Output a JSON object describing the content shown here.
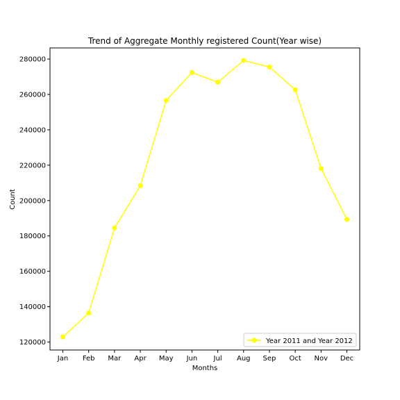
{
  "chart_data": {
    "type": "line",
    "title": "Trend of Aggregate Monthly registered Count(Year wise)",
    "xlabel": "Months",
    "ylabel": "Count",
    "categories": [
      "Jan",
      "Feb",
      "Mar",
      "Apr",
      "May",
      "Jun",
      "Jul",
      "Aug",
      "Sep",
      "Oct",
      "Nov",
      "Dec"
    ],
    "series": [
      {
        "name": "Year 2011 and Year 2012",
        "color": "#ffff00",
        "values": [
          122900,
          136400,
          184500,
          208400,
          256600,
          272400,
          266900,
          279200,
          275500,
          262600,
          218100,
          189300
        ]
      }
    ],
    "ylim": [
      115500,
      286300
    ],
    "yticks": [
      "120000",
      "140000",
      "160000",
      "180000",
      "200000",
      "220000",
      "240000",
      "260000",
      "280000"
    ],
    "grid": false,
    "legend_position": "lower-right"
  }
}
